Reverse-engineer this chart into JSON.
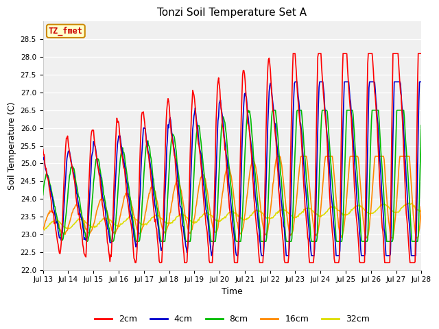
{
  "title": "Tonzi Soil Temperature Set A",
  "xlabel": "Time",
  "ylabel": "Soil Temperature (C)",
  "ylim": [
    22.0,
    29.0
  ],
  "yticks": [
    22.0,
    22.5,
    23.0,
    23.5,
    24.0,
    24.5,
    25.0,
    25.5,
    26.0,
    26.5,
    27.0,
    27.5,
    28.0,
    28.5
  ],
  "xtick_labels": [
    "Jul 13",
    "Jul 14",
    "Jul 15",
    "Jul 16",
    "Jul 17",
    "Jul 18",
    "Jul 19",
    "Jul 20",
    "Jul 21",
    "Jul 22",
    "Jul 23",
    "Jul 24",
    "Jul 25",
    "Jul 26",
    "Jul 27",
    "Jul 28"
  ],
  "colors": {
    "2cm": "#ff0000",
    "4cm": "#0000cc",
    "8cm": "#00bb00",
    "16cm": "#ff8800",
    "32cm": "#dddd00"
  },
  "legend_label": "TZ_fmet",
  "bg_color": "#ffffff",
  "plot_bg_color": "#f0f0f0",
  "grid_color": "#ffffff"
}
